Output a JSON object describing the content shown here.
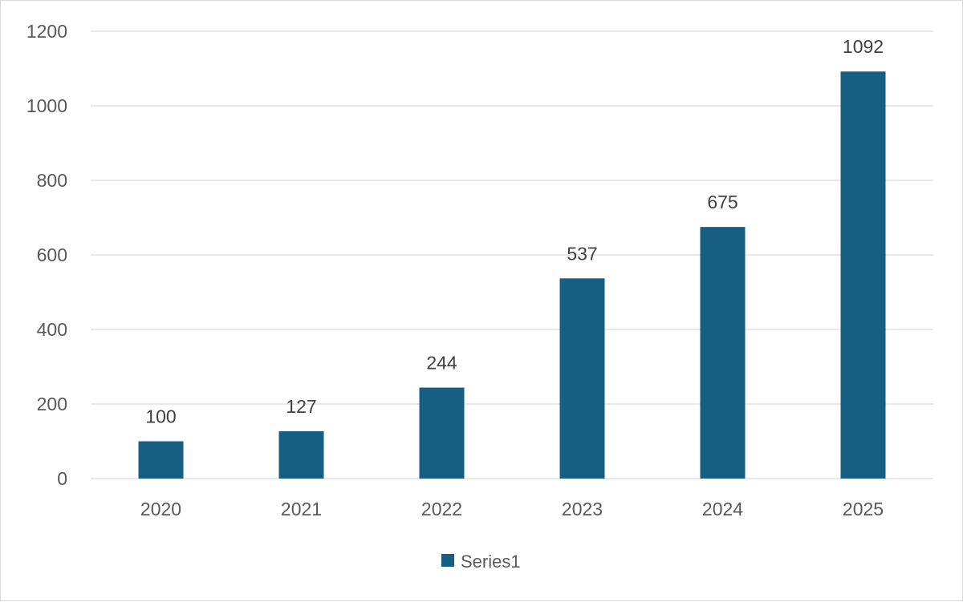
{
  "chart_data": {
    "type": "bar",
    "categories": [
      "2020",
      "2021",
      "2022",
      "2023",
      "2024",
      "2025"
    ],
    "series": [
      {
        "name": "Series1",
        "values": [
          100,
          127,
          244,
          537,
          675,
          1092
        ],
        "color": "#175f82"
      }
    ],
    "ylim": [
      0,
      1200
    ],
    "yticks": [
      0,
      200,
      400,
      600,
      800,
      1000,
      1200
    ],
    "grid": true,
    "gridline_color": "#d9d9d9",
    "legend_position": "bottom",
    "data_labels": true
  }
}
